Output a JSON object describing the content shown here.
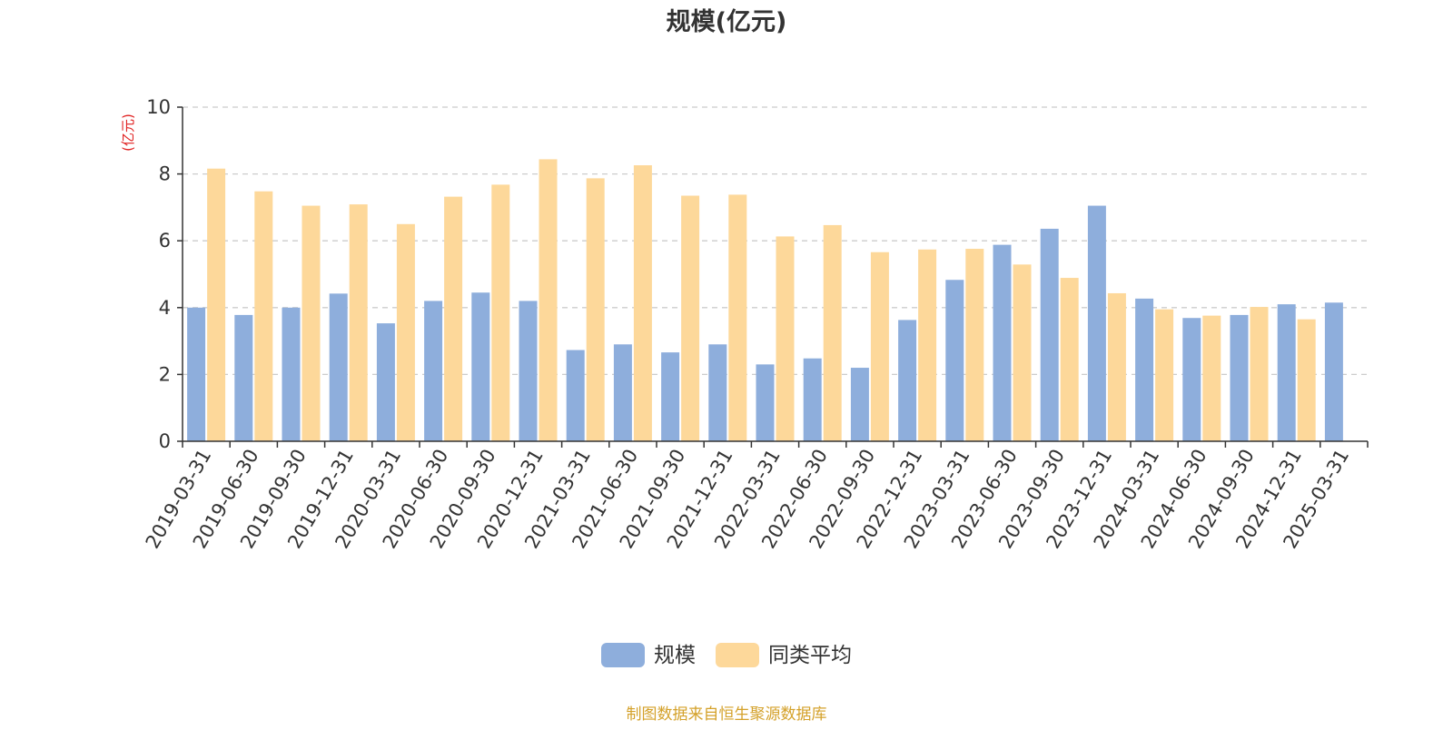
{
  "chart_data": {
    "type": "bar",
    "title": "规模(亿元)",
    "ylabel": "(亿元)",
    "ylim": [
      0,
      10
    ],
    "yticks": [
      0,
      2,
      4,
      6,
      8,
      10
    ],
    "grid": true,
    "legend_position": "bottom",
    "categories": [
      "2019-03-31",
      "2019-06-30",
      "2019-09-30",
      "2019-12-31",
      "2020-03-31",
      "2020-06-30",
      "2020-09-30",
      "2020-12-31",
      "2021-03-31",
      "2021-06-30",
      "2021-09-30",
      "2021-12-31",
      "2022-03-31",
      "2022-06-30",
      "2022-09-30",
      "2022-12-31",
      "2023-03-31",
      "2023-06-30",
      "2023-09-30",
      "2023-12-31",
      "2024-03-31",
      "2024-06-30",
      "2024-09-30",
      "2024-12-31",
      "2025-03-31"
    ],
    "series": [
      {
        "name": "规模",
        "color": "#8eaedc",
        "values": [
          4.0,
          3.78,
          4.0,
          4.42,
          3.53,
          4.2,
          4.45,
          4.2,
          2.73,
          2.9,
          2.66,
          2.9,
          2.3,
          2.48,
          2.2,
          3.63,
          4.83,
          5.88,
          6.36,
          7.05,
          4.27,
          3.69,
          3.78,
          4.1,
          4.15
        ]
      },
      {
        "name": "同类平均",
        "color": "#fdd89a",
        "values": [
          8.16,
          7.48,
          7.05,
          7.09,
          6.5,
          7.32,
          7.68,
          8.44,
          7.87,
          8.26,
          7.35,
          7.38,
          6.13,
          6.47,
          5.66,
          5.74,
          5.76,
          5.29,
          4.89,
          4.43,
          3.95,
          3.76,
          4.02,
          3.65,
          null
        ]
      }
    ],
    "footer": "制图数据来自恒生聚源数据库",
    "colors": {
      "title": "#333333",
      "ylabel": "#e02020",
      "axis": "#333333",
      "grid": "#cccccc",
      "footer": "#d4a12a"
    }
  }
}
